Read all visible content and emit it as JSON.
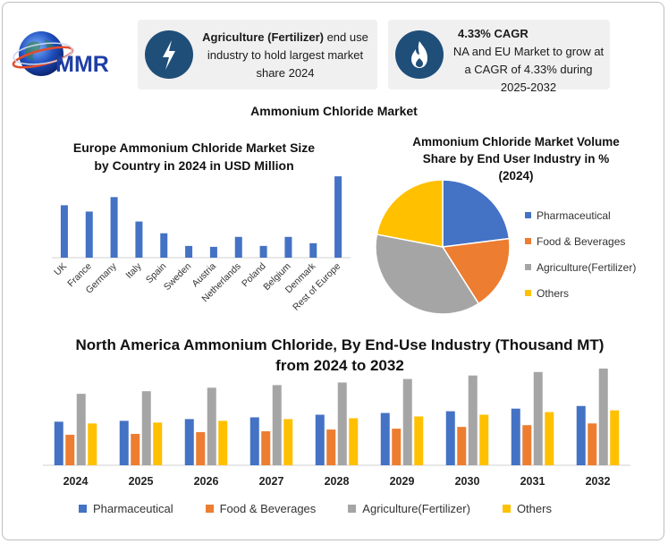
{
  "logo": {
    "text": "MMR"
  },
  "cards": [
    {
      "icon": "lightning-bolt-icon",
      "bold": "Agriculture (Fertilizer)",
      "rest": " end use industry to hold largest market share 2024"
    },
    {
      "icon": "flame-icon",
      "bold": "4.33% CAGR",
      "rest": "NA and EU Market to grow at a CAGR of 4.33% during 2025-2032"
    }
  ],
  "main_title": "Ammonium Chloride Market",
  "colors": {
    "pharma": "#4472C4",
    "food": "#ED7D31",
    "agri": "#A5A5A5",
    "others": "#FFC000",
    "icon_bg": "#1f4e79"
  },
  "chart_data": [
    {
      "type": "bar",
      "title": "Europe Ammonium Chloride Market Size by Country in 2024 in USD Million",
      "categories": [
        "UK",
        "France",
        "Germany",
        "Italy",
        "Spain",
        "Sweden",
        "Austria",
        "Netherlands",
        "Poland",
        "Belgium",
        "Denmark",
        "Rest of Europe"
      ],
      "values": [
        58,
        51,
        67,
        40,
        27,
        13,
        12,
        23,
        13,
        23,
        16,
        90
      ],
      "ylim": [
        0,
        95
      ],
      "ylabel": "",
      "xlabel": "",
      "grid": false
    },
    {
      "type": "pie",
      "title": "Ammonium Chloride Market Volume Share by End User Industry in % (2024)",
      "labels": [
        "Pharmaceutical",
        "Food & Beverages",
        "Agriculture(Fertilizer)",
        "Others"
      ],
      "values": [
        23,
        18,
        37,
        22
      ],
      "legend": "right"
    },
    {
      "type": "bar",
      "title": "North America Ammonium Chloride, By End-Use Industry (Thousand MT) from 2024 to 2032",
      "categories": [
        "2024",
        "2025",
        "2026",
        "2027",
        "2028",
        "2029",
        "2030",
        "2031",
        "2032"
      ],
      "series": [
        {
          "name": "Pharmaceutical",
          "values": [
            50,
            51,
            53,
            55,
            58,
            60,
            62,
            65,
            68
          ]
        },
        {
          "name": "Food & Beverages",
          "values": [
            35,
            36,
            38,
            39,
            41,
            42,
            44,
            46,
            48
          ]
        },
        {
          "name": "Agriculture(Fertilizer)",
          "values": [
            82,
            85,
            89,
            92,
            95,
            99,
            103,
            107,
            111
          ]
        },
        {
          "name": "Others",
          "values": [
            48,
            49,
            51,
            53,
            54,
            56,
            58,
            61,
            63
          ]
        }
      ],
      "ylim": [
        0,
        115
      ],
      "legend": "bottom",
      "grid": false
    }
  ]
}
